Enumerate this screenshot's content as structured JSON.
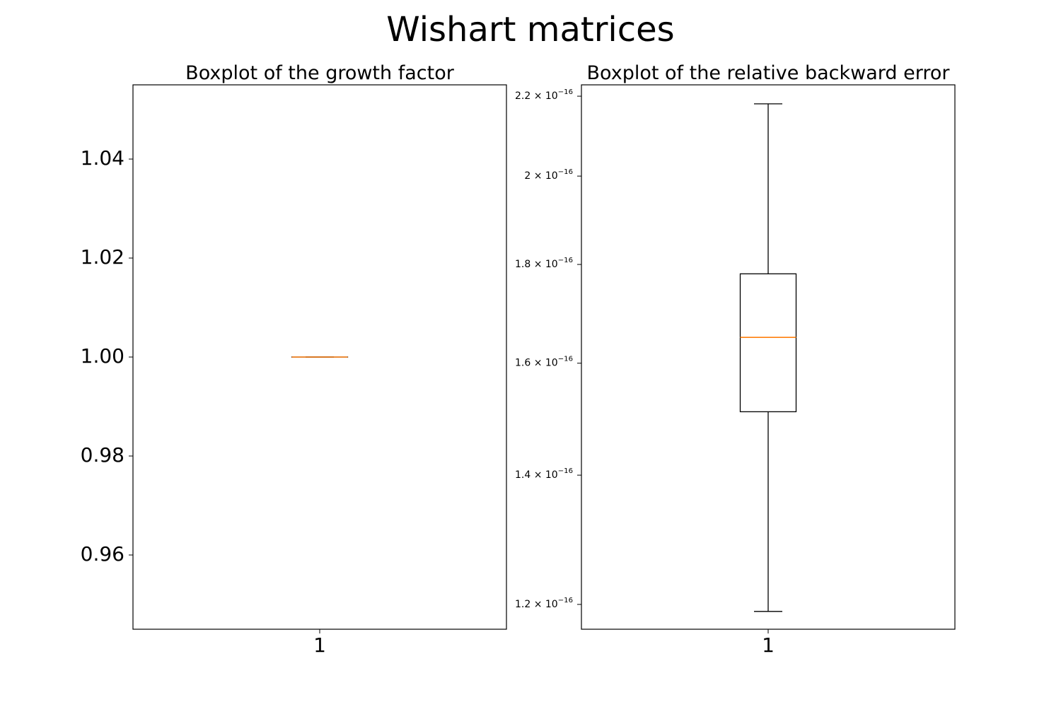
{
  "figure": {
    "suptitle": "Wishart matrices"
  },
  "chart_data": [
    {
      "type": "boxplot",
      "title": "Boxplot of the growth factor",
      "xlabel": "",
      "ylabel": "",
      "categories": [
        "1"
      ],
      "yscale": "linear",
      "ylim": [
        0.945,
        1.055
      ],
      "yticks": [
        {
          "value": 0.96,
          "label": "0.96"
        },
        {
          "value": 0.98,
          "label": "0.98"
        },
        {
          "value": 1.0,
          "label": "1.00"
        },
        {
          "value": 1.02,
          "label": "1.02"
        },
        {
          "value": 1.04,
          "label": "1.04"
        }
      ],
      "boxes": [
        {
          "category": "1",
          "whisker_low": 1.0,
          "q1": 1.0,
          "median": 1.0,
          "q3": 1.0,
          "whisker_high": 1.0
        }
      ],
      "grid": false,
      "colors": {
        "box": "#000000",
        "median": "#ff7f0e"
      }
    },
    {
      "type": "boxplot",
      "title": "Boxplot of the relative backward error",
      "xlabel": "",
      "ylabel": "",
      "categories": [
        "1"
      ],
      "yscale": "log",
      "ylim": [
        1.165e-16,
        2.23e-16
      ],
      "yticks": [
        {
          "value": 1.2e-16,
          "mantissa": "1.2",
          "exponent": "−16"
        },
        {
          "value": 1.4e-16,
          "mantissa": "1.4",
          "exponent": "−16"
        },
        {
          "value": 1.6e-16,
          "mantissa": "1.6",
          "exponent": "−16"
        },
        {
          "value": 1.8e-16,
          "mantissa": "1.8",
          "exponent": "−16"
        },
        {
          "value": 2e-16,
          "mantissa": "2",
          "exponent": "−16"
        },
        {
          "value": 2.2e-16,
          "mantissa": "2.2",
          "exponent": "−16"
        }
      ],
      "boxes": [
        {
          "category": "1",
          "whisker_low": 1.19e-16,
          "q1": 1.51e-16,
          "median": 1.65e-16,
          "q3": 1.78e-16,
          "whisker_high": 2.18e-16
        }
      ],
      "grid": false,
      "colors": {
        "box": "#000000",
        "median": "#ff7f0e"
      }
    }
  ]
}
